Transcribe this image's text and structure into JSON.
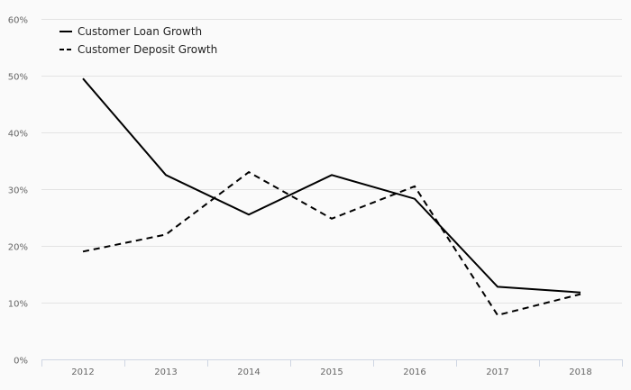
{
  "chart_data": {
    "type": "line",
    "title": "",
    "xlabel": "",
    "ylabel": "",
    "categories": [
      "2012",
      "2013",
      "2014",
      "2015",
      "2016",
      "2017",
      "2018"
    ],
    "series": [
      {
        "name": "Customer Loan Growth",
        "values": [
          49.5,
          32.5,
          25.5,
          32.5,
          28.3,
          12.8,
          11.8
        ],
        "style": "solid",
        "color": "#000000"
      },
      {
        "name": "Customer Deposit Growth",
        "values": [
          19.0,
          22.0,
          33.0,
          24.8,
          30.5,
          7.8,
          11.5
        ],
        "style": "dashed",
        "color": "#000000"
      }
    ],
    "ylim": [
      0,
      60
    ],
    "yticks": [
      0,
      10,
      20,
      30,
      40,
      50,
      60
    ],
    "ytick_labels": [
      "0%",
      "10%",
      "20%",
      "30%",
      "40%",
      "50%",
      "60%"
    ],
    "grid": true,
    "legend_position": "top-left"
  }
}
